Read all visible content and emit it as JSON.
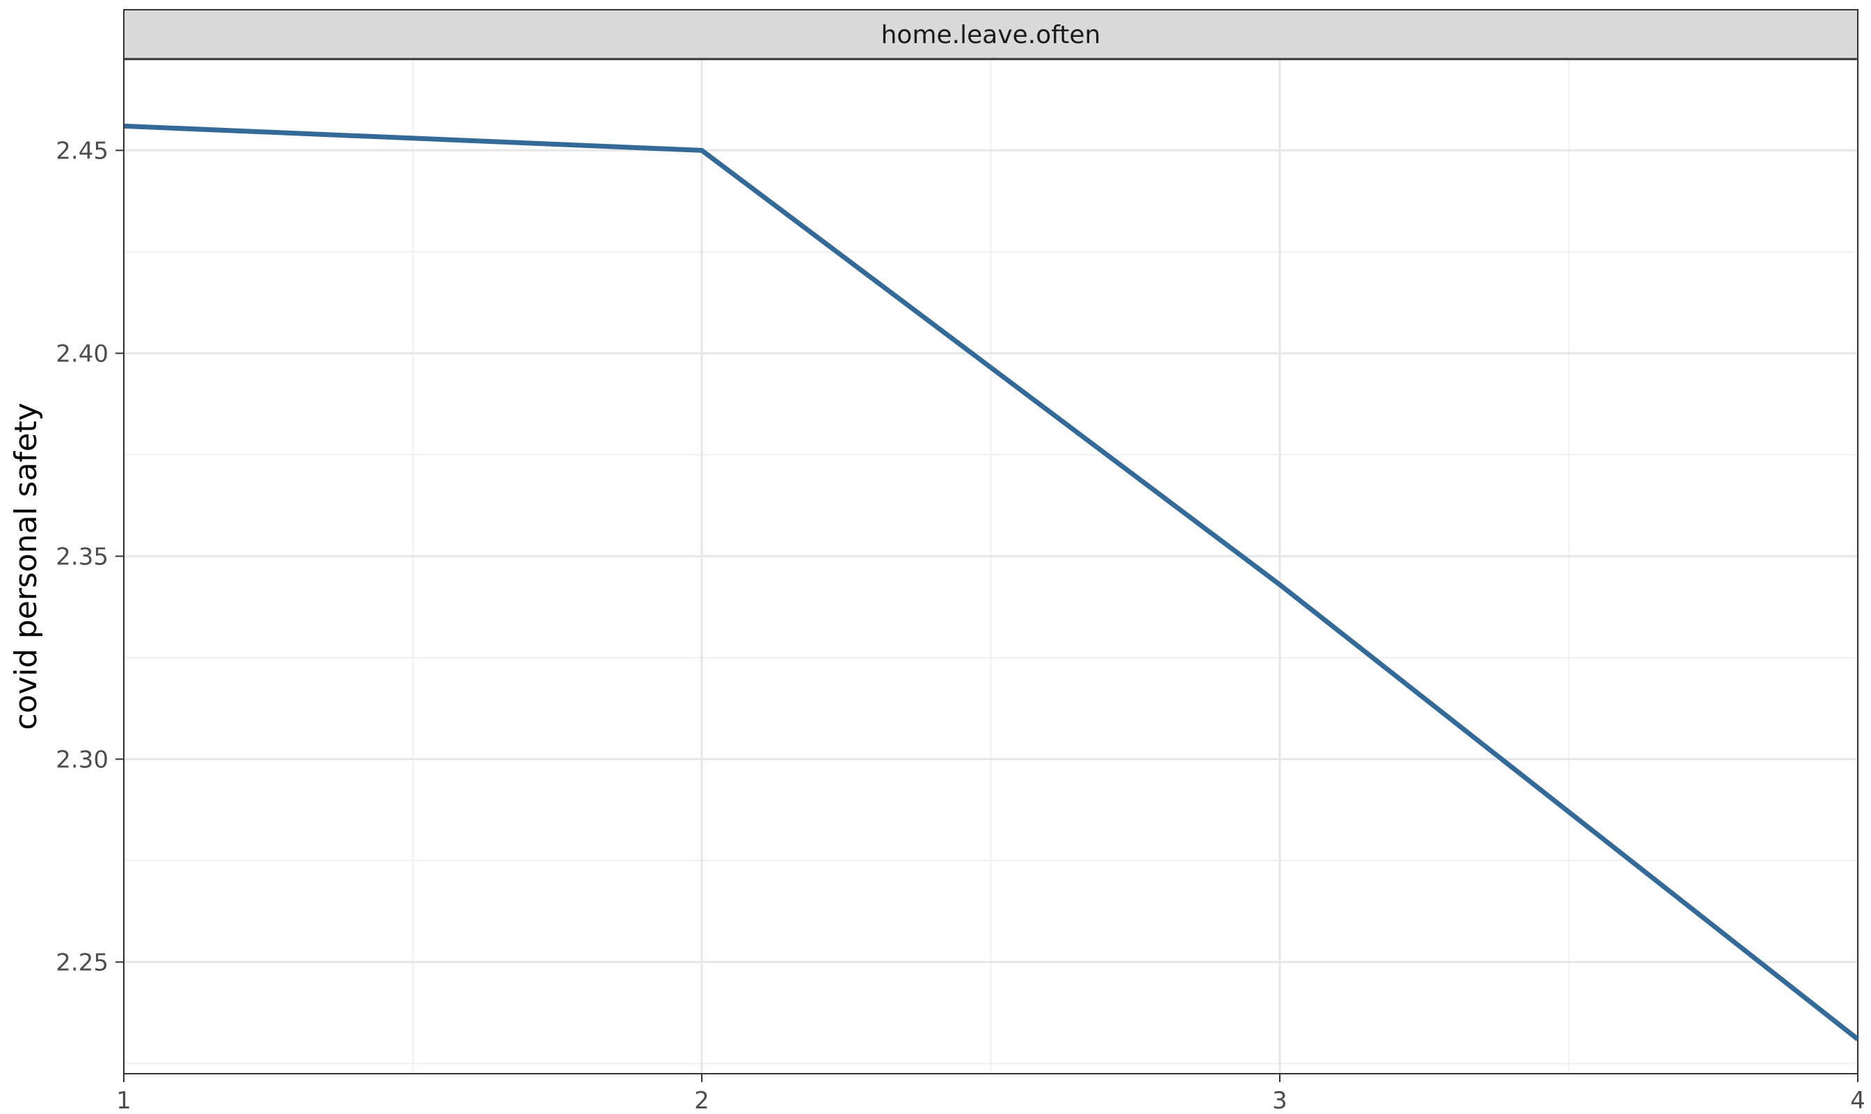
{
  "chart_data": {
    "type": "line",
    "facet_label": "home.leave.often",
    "xlabel": "",
    "ylabel": "covid personal safety",
    "x": [
      1,
      2,
      3,
      4
    ],
    "series": [
      {
        "values": [
          2.456,
          2.45,
          2.343,
          2.231
        ],
        "color": "#336a98"
      }
    ],
    "xlim": [
      1,
      4
    ],
    "ylim": [
      2.2225,
      2.4725
    ],
    "x_ticks": [
      1,
      2,
      3,
      4
    ],
    "x_tick_labels": [
      "1",
      "2",
      "3",
      "4"
    ],
    "y_ticks": [
      2.25,
      2.3,
      2.35,
      2.4,
      2.45
    ],
    "y_tick_labels": [
      "2.25",
      "2.30",
      "2.35",
      "2.40",
      "2.45"
    ],
    "grid": true,
    "legend": "none"
  }
}
